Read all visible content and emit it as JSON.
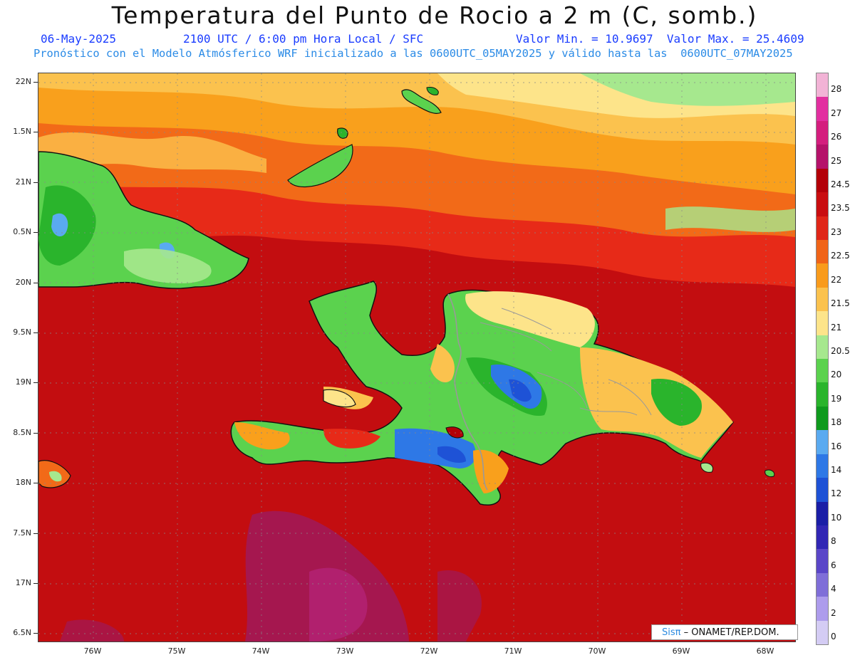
{
  "title": "Temperatura del Punto de Rocio a 2 m (C, somb.)",
  "header": {
    "date": "06-May-2025",
    "time": "2100 UTC / 6:00 pm Hora Local / SFC",
    "min_max": "Valor Min. = 10.9697  Valor Max. = 25.4609",
    "forecast": "Pronóstico con el Modelo Atmósferico WRF inicializado a las 0600UTC_05MAY2025 y válido hasta las  0600UTC_07MAY2025"
  },
  "latitudes": [
    "22N",
    "1.5N",
    "21N",
    "0.5N",
    "20N",
    "9.5N",
    "19N",
    "8.5N",
    "18N",
    "7.5N",
    "17N",
    "6.5N"
  ],
  "longitudes": [
    "76W",
    "75W",
    "74W",
    "73W",
    "72W",
    "71W",
    "70W",
    "69W",
    "68W"
  ],
  "colorbar": {
    "labels": [
      "28",
      "27",
      "26",
      "25",
      "24.5",
      "23.5",
      "23",
      "22.5",
      "22",
      "21.5",
      "21",
      "20.5",
      "20",
      "19",
      "18",
      "16",
      "14",
      "12",
      "10",
      "8",
      "6",
      "4",
      "2",
      "0"
    ],
    "colors": [
      "#f2b3d6",
      "#e22fa0",
      "#d41e7e",
      "#b5126a",
      "#b30008",
      "#c90d10",
      "#e02618",
      "#f06418",
      "#f99b1c",
      "#fbc24e",
      "#fde48a",
      "#a6e88e",
      "#5bd24e",
      "#2ab42c",
      "#0f9a1e",
      "#5aaaf0",
      "#2e78e6",
      "#1e52d6",
      "#1a1ea6",
      "#3126b4",
      "#5a46c8",
      "#7f6ed8",
      "#ad9cec",
      "#d4ccf4"
    ]
  },
  "branding": {
    "prefix": "Sisπ",
    "text": "– ONAMET/REP.DOM."
  }
}
